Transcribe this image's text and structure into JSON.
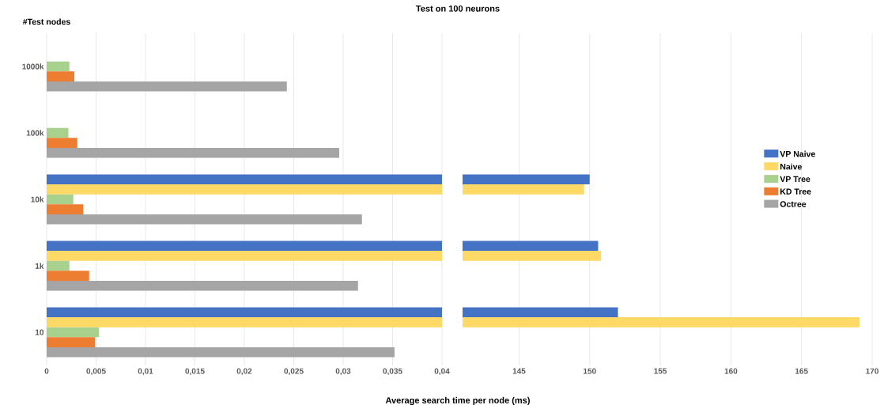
{
  "chart_data": [
    {
      "type": "bar",
      "orientation": "horizontal",
      "title": "Test on 100 neurons",
      "xlabel": "Average search time per node (ms)",
      "ylabel": "#Test nodes",
      "categories": [
        "1000k",
        "100k",
        "10k",
        "1k",
        "10"
      ],
      "series": [
        {
          "color": "#4472c4",
          "values": [
            null,
            null,
            0.04,
            0.04,
            0.04
          ]
        },
        {
          "color": "#ffd966",
          "values": [
            null,
            null,
            0.04,
            0.04,
            0.04
          ]
        },
        {
          "color": "#a9d18e",
          "values": [
            0.0023,
            0.0022,
            0.0027,
            0.0023,
            0.0053
          ]
        },
        {
          "color": "#ed7d31",
          "values": [
            0.0028,
            0.0031,
            0.0037,
            0.0043,
            0.0049
          ]
        },
        {
          "color": "#a5a5a5",
          "values": [
            0.0243,
            0.0296,
            0.0319,
            0.0315,
            0.0352
          ]
        }
      ],
      "xlim": [
        0,
        0.04
      ],
      "xticks": [
        0,
        {
          "value": 0.005,
          "label": "0,005"
        },
        {
          "value": 0.01,
          "label": "0,01"
        },
        {
          "value": 0.015,
          "label": "0,015"
        },
        {
          "value": 0.02,
          "label": "0,02"
        },
        {
          "value": 0.025,
          "label": "0,025"
        },
        {
          "value": 0.03,
          "label": "0,03"
        },
        {
          "value": 0.035,
          "label": "0,035"
        },
        {
          "value": 0.04,
          "label": "0,04"
        }
      ],
      "grid": "x"
    },
    {
      "type": "bar",
      "orientation": "horizontal",
      "series": [
        {
          "name": "VP Naive",
          "color": "#4472c4",
          "values": [
            null,
            null,
            150.0,
            150.6,
            152.0
          ]
        },
        {
          "name": "Naive",
          "color": "#ffd966",
          "values": [
            null,
            null,
            149.6,
            150.8,
            169.1
          ]
        },
        {
          "name": "VP Tree",
          "color": "#a9d18e",
          "values": [
            null,
            null,
            null,
            null,
            null
          ]
        },
        {
          "name": "KD Tree",
          "color": "#ed7d31",
          "values": [
            null,
            null,
            null,
            null,
            null
          ]
        },
        {
          "name": "Octree",
          "color": "#a5a5a5",
          "values": [
            null,
            null,
            null,
            null,
            null
          ]
        }
      ],
      "xlim": [
        141,
        170
      ],
      "xticks": [
        145,
        150,
        155,
        160,
        165,
        170
      ],
      "grid": "x",
      "legend": "right",
      "tick_labels": "x"
    }
  ]
}
